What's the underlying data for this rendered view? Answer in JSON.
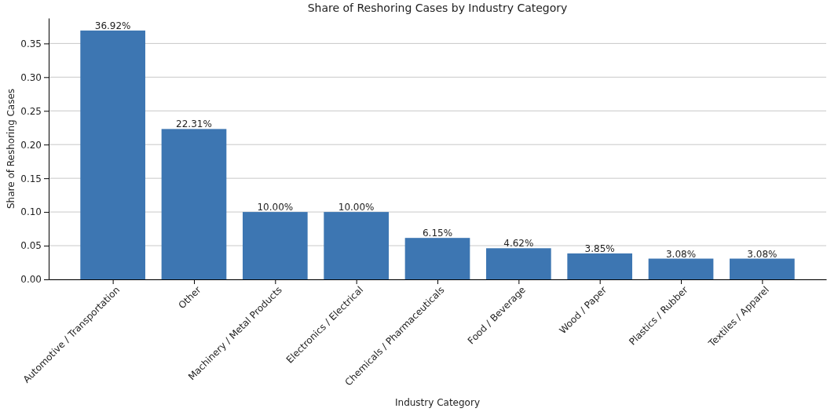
{
  "chart_data": {
    "type": "bar",
    "title": "Share of Reshoring Cases by Industry Category",
    "xlabel": "Industry Category",
    "ylabel": "Share of Reshoring Cases",
    "categories": [
      "Automotive / Transportation",
      "Other",
      "Machinery / Metal Products",
      "Electronics / Electrical",
      "Chemicals / Pharmaceuticals",
      "Food / Beverage",
      "Wood / Paper",
      "Plastics / Rubber",
      "Textiles / Apparel"
    ],
    "values": [
      0.3692,
      0.2231,
      0.1,
      0.1,
      0.0615,
      0.0462,
      0.0385,
      0.0308,
      0.0308
    ],
    "value_labels": [
      "36.92%",
      "22.31%",
      "10.00%",
      "10.00%",
      "6.15%",
      "4.62%",
      "3.85%",
      "3.08%",
      "3.08%"
    ],
    "color": "#3d76b2",
    "ylim": [
      0,
      0.3877
    ],
    "yticks": [
      {
        "value": 0,
        "label": "0.00"
      },
      {
        "value": 0.05,
        "label": "0.05"
      },
      {
        "value": 0.1,
        "label": "0.10"
      },
      {
        "value": 0.15,
        "label": "0.15"
      },
      {
        "value": 0.2,
        "label": "0.20"
      },
      {
        "value": 0.25,
        "label": "0.25"
      },
      {
        "value": 0.3,
        "label": "0.30"
      },
      {
        "value": 0.35,
        "label": "0.35"
      }
    ],
    "grid": "y"
  }
}
